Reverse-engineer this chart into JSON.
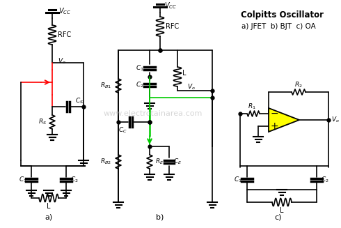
{
  "title": "Colpitts Oscillator",
  "subtitle": "a) JFET  b) BJT  c) OA",
  "watermark": "www.electrotainarea.com",
  "bg_color": "#ffffff",
  "line_color": "#000000",
  "jfet_color": "#ff0000",
  "bjt_color": "#00cc00",
  "oa_fill": "#ffff00",
  "figsize": [
    4.9,
    3.27
  ],
  "dpi": 100
}
